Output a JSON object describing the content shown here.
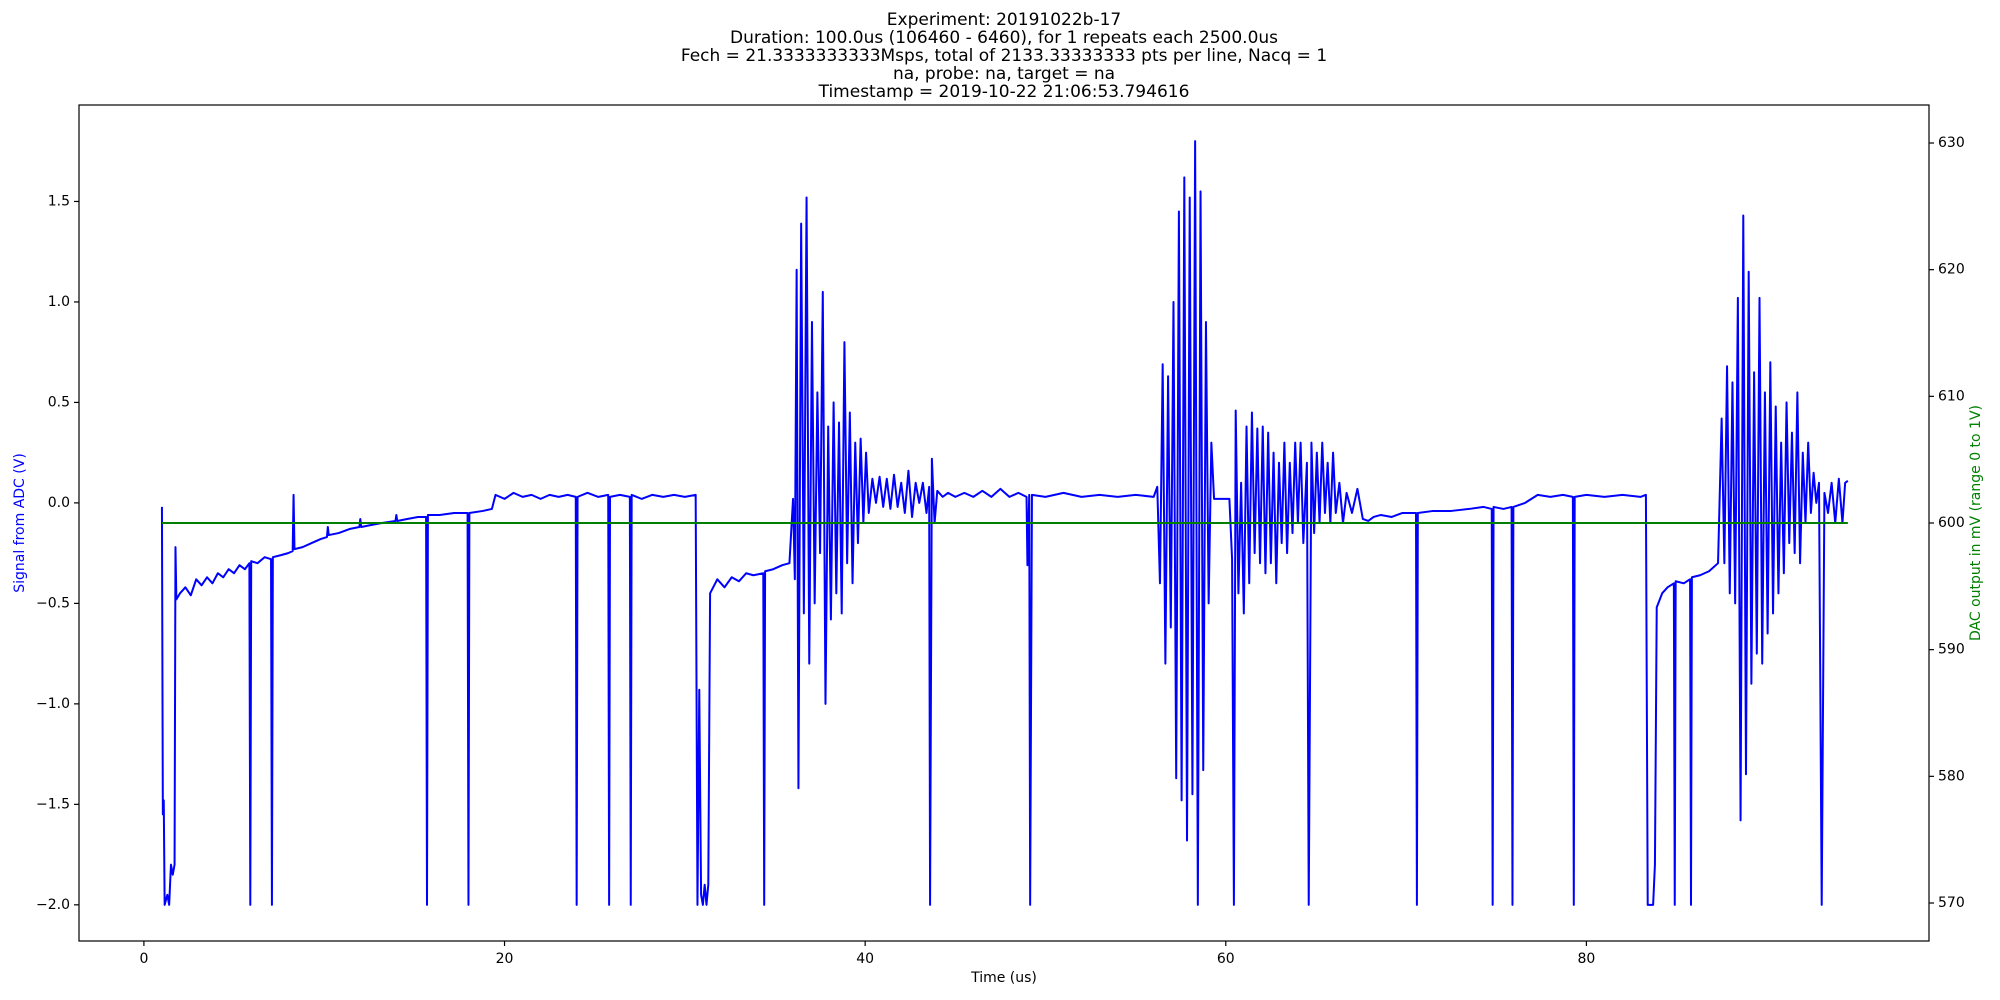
{
  "chart_data": {
    "type": "line",
    "title_lines": [
      "Experiment: 20191022b-17",
      "Duration: 100.0us (106460 - 6460), for 1 repeats each 2500.0us",
      "Fech = 21.3333333333Msps, total of 2133.33333333 pts per line, Nacq = 1",
      "na, probe: na, target = na",
      "Timestamp = 2019-10-22 21:06:53.794616"
    ],
    "xlabel": "Time (us)",
    "ylabel": "Signal from ADC (V)",
    "y2label": "DAC output in mV (range 0 to 1V)",
    "xlim": [
      -3.6,
      99
    ],
    "ylim": [
      -2.18,
      1.98
    ],
    "y2lim": [
      567,
      633
    ],
    "xticks": [
      0,
      20,
      40,
      60,
      80
    ],
    "yticks": [
      {
        "value": -2,
        "label": "−2.0"
      },
      {
        "value": -1.5,
        "label": "−1.5"
      },
      {
        "value": -1,
        "label": "−1.0"
      },
      {
        "value": -0.5,
        "label": "−0.5"
      },
      {
        "value": 0,
        "label": "0.0"
      },
      {
        "value": 0.5,
        "label": "0.5"
      },
      {
        "value": 1,
        "label": "1.0"
      },
      {
        "value": 1.5,
        "label": "1.5"
      }
    ],
    "y2ticks": [
      570,
      580,
      590,
      600,
      610,
      620,
      630
    ],
    "grid": false,
    "series": [
      {
        "color": "#0000ff",
        "x": [
          1.0,
          1.05,
          1.1,
          1.15,
          1.3,
          1.4,
          1.5,
          1.6,
          1.7,
          1.75,
          1.8,
          2.0,
          2.3,
          2.6,
          2.9,
          3.2,
          3.5,
          3.8,
          4.1,
          4.4,
          4.7,
          5.0,
          5.3,
          5.6,
          5.85,
          5.9,
          5.95,
          6.3,
          6.7,
          7.05,
          7.1,
          7.15,
          7.6,
          8.0,
          8.25,
          8.3,
          8.35,
          8.8,
          9.3,
          9.8,
          10.15,
          10.2,
          10.25,
          10.8,
          11.4,
          11.95,
          12.0,
          12.05,
          12.6,
          13.2,
          13.95,
          14.0,
          14.05,
          14.6,
          15.2,
          15.65,
          15.7,
          15.75,
          16.4,
          17.2,
          17.95,
          18.0,
          18.05,
          18.8,
          19.3,
          19.5,
          20.0,
          20.5,
          21.0,
          21.5,
          22.0,
          22.5,
          23.0,
          23.5,
          23.95,
          24.0,
          24.05,
          24.6,
          25.2,
          25.75,
          25.8,
          25.85,
          26.4,
          26.95,
          27.0,
          27.05,
          27.6,
          28.2,
          28.8,
          29.4,
          30.0,
          30.6,
          30.7,
          30.8,
          30.9,
          31.0,
          31.1,
          31.2,
          31.3,
          31.4,
          31.8,
          32.2,
          32.6,
          33.0,
          33.4,
          33.8,
          34.35,
          34.4,
          34.45,
          34.9,
          35.4,
          35.8,
          36.0,
          36.1,
          36.2,
          36.3,
          36.45,
          36.6,
          36.75,
          36.9,
          37.05,
          37.2,
          37.35,
          37.5,
          37.65,
          37.8,
          37.95,
          38.1,
          38.25,
          38.4,
          38.55,
          38.7,
          38.85,
          39.0,
          39.15,
          39.3,
          39.45,
          39.6,
          39.75,
          39.9,
          40.05,
          40.2,
          40.4,
          40.6,
          40.8,
          41.0,
          41.2,
          41.4,
          41.6,
          41.8,
          42.0,
          42.2,
          42.4,
          42.6,
          42.8,
          43.0,
          43.2,
          43.4,
          43.55,
          43.6,
          43.7,
          43.85,
          44.0,
          44.3,
          44.6,
          45.0,
          45.5,
          46.0,
          46.5,
          47.0,
          47.5,
          48.0,
          48.5,
          48.95,
          49.0,
          49.1,
          49.15,
          49.25,
          50.0,
          51.0,
          52.0,
          53.0,
          54.0,
          55.0,
          56.0,
          56.2,
          56.35,
          56.5,
          56.65,
          56.8,
          56.95,
          57.1,
          57.25,
          57.4,
          57.55,
          57.7,
          57.85,
          58.0,
          58.15,
          58.3,
          58.45,
          58.6,
          58.75,
          58.9,
          59.05,
          59.2,
          59.35,
          59.8,
          60.2,
          60.35,
          60.45,
          60.55,
          60.7,
          60.85,
          61.0,
          61.15,
          61.3,
          61.45,
          61.6,
          61.75,
          61.9,
          62.05,
          62.2,
          62.35,
          62.5,
          62.65,
          62.8,
          62.95,
          63.1,
          63.25,
          63.4,
          63.55,
          63.7,
          63.85,
          64.0,
          64.15,
          64.3,
          64.5,
          64.6,
          64.75,
          64.9,
          65.05,
          65.2,
          65.35,
          65.5,
          65.65,
          65.8,
          65.95,
          66.1,
          66.3,
          66.5,
          66.7,
          67.0,
          67.3,
          67.6,
          67.9,
          68.2,
          68.6,
          69.2,
          69.8,
          70.55,
          70.6,
          70.65,
          71.5,
          72.5,
          73.5,
          74.3,
          74.75,
          74.8,
          74.85,
          75.4,
          75.85,
          75.9,
          75.95,
          76.6,
          77.3,
          78.0,
          78.7,
          79.25,
          79.3,
          79.35,
          80.0,
          81.0,
          82.0,
          83.0,
          83.3,
          83.4,
          83.7,
          83.8,
          83.9,
          84.2,
          84.5,
          84.85,
          84.9,
          84.95,
          85.4,
          85.75,
          85.8,
          85.85,
          86.3,
          86.8,
          87.3,
          87.5,
          87.65,
          87.8,
          87.95,
          88.1,
          88.25,
          88.4,
          88.55,
          88.7,
          88.85,
          89.0,
          89.15,
          89.3,
          89.45,
          89.6,
          89.75,
          89.9,
          90.05,
          90.2,
          90.35,
          90.5,
          90.65,
          90.8,
          90.95,
          91.1,
          91.25,
          91.4,
          91.55,
          91.7,
          91.85,
          92.0,
          92.15,
          92.3,
          92.45,
          92.6,
          92.75,
          92.9,
          93.05,
          93.2,
          93.4,
          93.6,
          93.8,
          94.0,
          94.2,
          94.35,
          94.5
        ],
        "values": [
          -0.02,
          -1.55,
          -1.48,
          -2.0,
          -1.95,
          -2.0,
          -1.8,
          -1.85,
          -1.8,
          -0.22,
          -0.48,
          -0.45,
          -0.42,
          -0.46,
          -0.38,
          -0.41,
          -0.37,
          -0.4,
          -0.35,
          -0.37,
          -0.33,
          -0.35,
          -0.31,
          -0.33,
          -0.3,
          -2.0,
          -0.29,
          -0.3,
          -0.27,
          -0.28,
          -2.0,
          -0.27,
          -0.26,
          -0.25,
          -0.24,
          0.04,
          -0.23,
          -0.22,
          -0.2,
          -0.18,
          -0.17,
          -0.12,
          -0.16,
          -0.15,
          -0.13,
          -0.12,
          -0.08,
          -0.12,
          -0.11,
          -0.1,
          -0.09,
          -0.06,
          -0.09,
          -0.08,
          -0.07,
          -0.07,
          -2.0,
          -0.06,
          -0.06,
          -0.05,
          -0.05,
          -2.0,
          -0.05,
          -0.04,
          -0.03,
          0.04,
          0.02,
          0.05,
          0.03,
          0.04,
          0.02,
          0.04,
          0.03,
          0.04,
          0.03,
          -2.0,
          0.03,
          0.05,
          0.03,
          0.04,
          -2.0,
          0.03,
          0.04,
          0.03,
          -2.0,
          0.04,
          0.02,
          0.04,
          0.03,
          0.04,
          0.03,
          0.04,
          -2.0,
          -0.93,
          -1.95,
          -2.0,
          -1.9,
          -2.0,
          -1.9,
          -0.45,
          -0.38,
          -0.42,
          -0.37,
          -0.39,
          -0.35,
          -0.36,
          -0.35,
          -2.0,
          -0.34,
          -0.33,
          -0.31,
          -0.3,
          0.02,
          -0.38,
          1.16,
          -1.42,
          1.39,
          -0.55,
          1.52,
          -0.8,
          0.9,
          -0.5,
          0.55,
          -0.25,
          1.05,
          -1.0,
          0.38,
          -0.58,
          0.5,
          -0.45,
          0.4,
          -0.55,
          0.8,
          -0.3,
          0.45,
          -0.4,
          0.3,
          -0.2,
          0.32,
          -0.1,
          0.25,
          -0.05,
          0.12,
          0.0,
          0.13,
          -0.02,
          0.12,
          -0.03,
          0.14,
          -0.02,
          0.1,
          -0.05,
          0.16,
          -0.07,
          0.1,
          0.0,
          0.1,
          -0.05,
          0.08,
          -2.0,
          0.22,
          -0.1,
          0.06,
          0.03,
          0.05,
          0.03,
          0.05,
          0.03,
          0.06,
          0.03,
          0.07,
          0.03,
          0.05,
          0.03,
          -0.31,
          0.04,
          -2.0,
          0.04,
          0.03,
          0.05,
          0.03,
          0.04,
          0.03,
          0.04,
          0.03,
          0.08,
          -0.4,
          0.69,
          -0.8,
          0.63,
          -0.62,
          1.0,
          -1.37,
          1.45,
          -1.48,
          1.62,
          -1.68,
          1.52,
          -1.45,
          1.8,
          -2.0,
          1.55,
          -1.33,
          0.9,
          -0.5,
          0.3,
          0.02,
          0.02,
          0.02,
          -0.28,
          -2.0,
          0.46,
          -0.45,
          0.1,
          -0.55,
          0.38,
          -0.4,
          0.45,
          -0.25,
          0.37,
          -0.3,
          0.38,
          -0.35,
          0.35,
          -0.3,
          0.25,
          -0.4,
          0.2,
          -0.2,
          0.3,
          -0.25,
          0.2,
          -0.15,
          0.3,
          -0.1,
          0.3,
          -0.2,
          0.2,
          -2.0,
          0.3,
          -0.15,
          0.25,
          -0.1,
          0.3,
          -0.05,
          0.2,
          -0.1,
          0.25,
          -0.05,
          0.1,
          -0.1,
          0.05,
          -0.05,
          0.07,
          -0.08,
          -0.09,
          -0.07,
          -0.06,
          -0.07,
          -0.05,
          -0.05,
          -2.0,
          -0.05,
          -0.04,
          -0.04,
          -0.03,
          -0.02,
          -0.03,
          -2.0,
          -0.02,
          -0.03,
          -0.02,
          -2.0,
          -0.02,
          0.0,
          0.04,
          0.03,
          0.04,
          0.03,
          -2.0,
          0.03,
          0.04,
          0.03,
          0.04,
          0.03,
          0.04,
          -2.0,
          -2.0,
          -1.8,
          -0.52,
          -0.45,
          -0.42,
          -0.4,
          -2.0,
          -0.39,
          -0.4,
          -0.38,
          -2.0,
          -0.37,
          -0.36,
          -0.34,
          -0.3,
          0.42,
          -0.3,
          0.68,
          -0.45,
          0.6,
          -0.5,
          1.02,
          -1.58,
          1.43,
          -1.35,
          1.15,
          -0.9,
          0.65,
          -0.75,
          1.02,
          -0.8,
          0.55,
          -0.65,
          0.7,
          -0.55,
          0.48,
          -0.45,
          0.3,
          -0.35,
          0.5,
          -0.2,
          0.35,
          -0.25,
          0.55,
          -0.3,
          0.25,
          -0.1,
          0.3,
          -0.05,
          0.15,
          0.0,
          0.1,
          -2.0,
          0.05,
          -0.05,
          0.1,
          -0.1,
          0.12,
          -0.1,
          0.1,
          0.11
        ]
      },
      {
        "color": "#008000",
        "axis": "y2",
        "x": [
          1.0,
          94.5
        ],
        "values": [
          600,
          600
        ]
      }
    ]
  }
}
